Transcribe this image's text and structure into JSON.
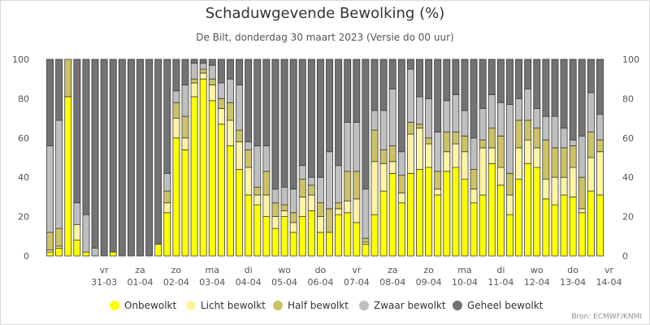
{
  "header": {
    "title": "Schaduwgevende Bewolking (%)",
    "subtitle": "De Bilt, donderdag 30 maart 2023 (Versie do 00 uur)"
  },
  "credit": "Bron: ECMWF/KNMI",
  "colors": {
    "onbewolkt": "#ffff00",
    "licht": "#fff4a3",
    "half": "#ccc266",
    "zwaar": "#bfbfbf",
    "geheel": "#737373"
  },
  "chart_data": {
    "type": "bar",
    "stacked": true,
    "ylim": [
      0,
      100
    ],
    "yticks": [
      0,
      20,
      40,
      60,
      80,
      100
    ],
    "yticks_right": true,
    "grid": false,
    "legend_position": "bottom",
    "x_label_days": [
      {
        "day": "vr",
        "date": "31-03",
        "index": 6
      },
      {
        "day": "za",
        "date": "01-04",
        "index": 10
      },
      {
        "day": "zo",
        "date": "02-04",
        "index": 14
      },
      {
        "day": "ma",
        "date": "03-04",
        "index": 18
      },
      {
        "day": "di",
        "date": "04-04",
        "index": 22
      },
      {
        "day": "wo",
        "date": "05-04",
        "index": 26
      },
      {
        "day": "do",
        "date": "06-04",
        "index": 30
      },
      {
        "day": "vr",
        "date": "07-04",
        "index": 34
      },
      {
        "day": "za",
        "date": "08-04",
        "index": 38
      },
      {
        "day": "zo",
        "date": "09-04",
        "index": 42
      },
      {
        "day": "ma",
        "date": "10-04",
        "index": 46
      },
      {
        "day": "di",
        "date": "11-04",
        "index": 50
      },
      {
        "day": "wo",
        "date": "12-04",
        "index": 54
      },
      {
        "day": "do",
        "date": "13-04",
        "index": 58
      },
      {
        "day": "vr",
        "date": "14-04",
        "index": 62
      }
    ],
    "series": [
      {
        "name": "Onbewolkt",
        "color": "#ffff00",
        "values": [
          2,
          4,
          81,
          8,
          2,
          0,
          0,
          2,
          0,
          0,
          0,
          0,
          6,
          22,
          60,
          54,
          81,
          90,
          79,
          67,
          56,
          44,
          31,
          26,
          20,
          14,
          20,
          12,
          20,
          23,
          12,
          12,
          21,
          22,
          17,
          6,
          21,
          33,
          42,
          27,
          42,
          44,
          45,
          31,
          43,
          45,
          39,
          27,
          31,
          47,
          36,
          21,
          39,
          47,
          45,
          29,
          26,
          31,
          30,
          22,
          33,
          31
        ]
      },
      {
        "name": "Licht bewolkt",
        "color": "#fff4a3",
        "values": [
          1,
          1,
          0,
          8,
          0,
          0,
          0,
          0,
          0,
          0,
          0,
          0,
          0,
          5,
          10,
          6,
          7,
          3,
          8,
          8,
          13,
          14,
          14,
          5,
          11,
          6,
          3,
          5,
          10,
          8,
          8,
          0,
          3,
          6,
          12,
          1,
          27,
          14,
          6,
          5,
          20,
          21,
          12,
          3,
          10,
          12,
          14,
          7,
          24,
          8,
          9,
          10,
          16,
          12,
          10,
          10,
          14,
          9,
          15,
          2,
          17,
          22
        ]
      },
      {
        "name": "Half bewolkt",
        "color": "#ccc266",
        "values": [
          9,
          9,
          19,
          0,
          0,
          0,
          0,
          0,
          0,
          0,
          0,
          0,
          0,
          6,
          8,
          11,
          2,
          2,
          3,
          5,
          9,
          6,
          9,
          4,
          12,
          7,
          3,
          5,
          9,
          5,
          7,
          12,
          3,
          15,
          14,
          2,
          16,
          7,
          8,
          9,
          6,
          2,
          3,
          9,
          10,
          6,
          8,
          10,
          4,
          10,
          16,
          11,
          14,
          10,
          10,
          20,
          15,
          15,
          11,
          16,
          13,
          6
        ]
      },
      {
        "name": "Zwaar bewolkt",
        "color": "#bfbfbf",
        "values": [
          44,
          55,
          0,
          11,
          19,
          4,
          0,
          0,
          0,
          0,
          0,
          0,
          0,
          9,
          6,
          16,
          8,
          3,
          7,
          8,
          12,
          23,
          4,
          21,
          13,
          7,
          9,
          12,
          7,
          4,
          13,
          29,
          19,
          25,
          25,
          25,
          10,
          20,
          29,
          12,
          27,
          14,
          20,
          20,
          16,
          19,
          13,
          16,
          16,
          17,
          17,
          35,
          11,
          16,
          10,
          12,
          16,
          10,
          3,
          21,
          20,
          13
        ]
      },
      {
        "name": "Geheel bewolkt",
        "color": "#737373",
        "values": [
          44,
          31,
          0,
          73,
          79,
          96,
          100,
          98,
          100,
          100,
          100,
          100,
          94,
          58,
          16,
          13,
          2,
          2,
          3,
          12,
          10,
          13,
          42,
          44,
          44,
          66,
          65,
          66,
          54,
          60,
          60,
          47,
          54,
          32,
          32,
          66,
          26,
          26,
          15,
          47,
          5,
          19,
          20,
          37,
          21,
          18,
          26,
          40,
          25,
          18,
          22,
          23,
          20,
          15,
          25,
          29,
          29,
          35,
          41,
          39,
          17,
          28
        ]
      }
    ]
  }
}
